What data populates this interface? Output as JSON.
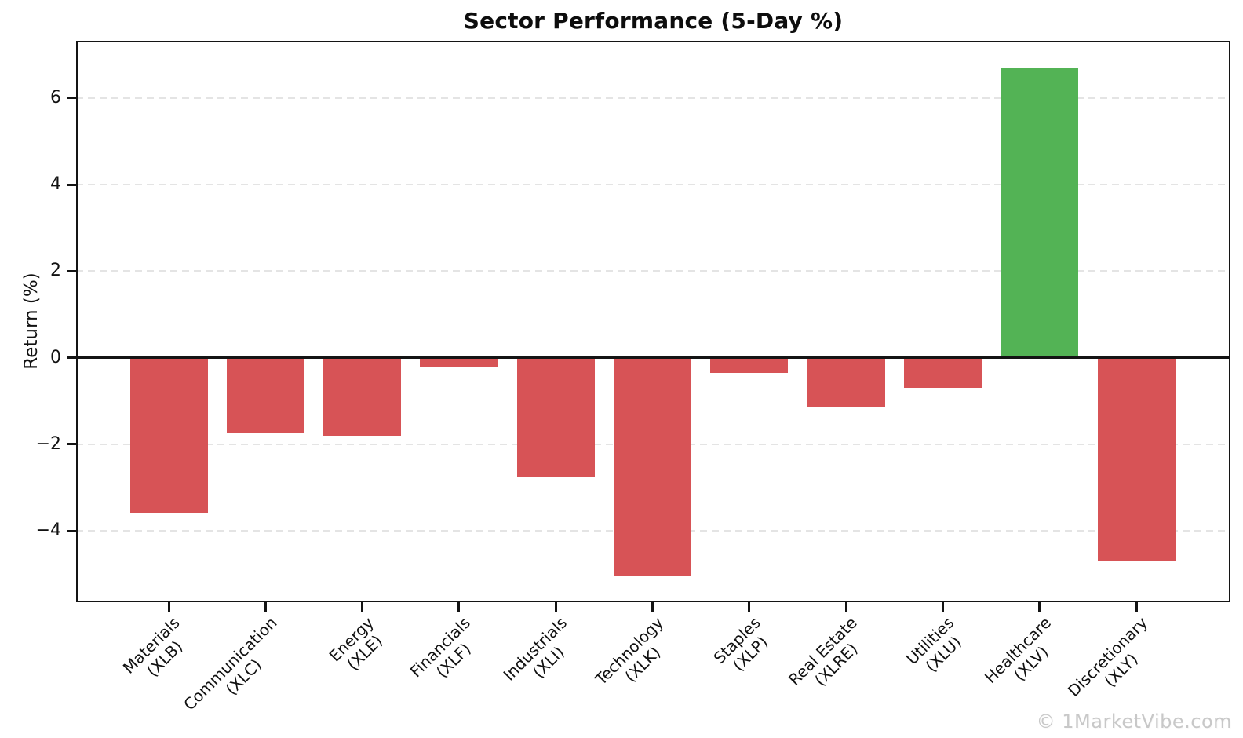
{
  "watermark": "© 1MarketVibe.com",
  "chart_data": {
    "type": "bar",
    "title": "Sector Performance (5-Day %)",
    "xlabel": "",
    "ylabel": "Return (%)",
    "categories": [
      [
        "Materials",
        "(XLB)"
      ],
      [
        "Communication",
        "(XLC)"
      ],
      [
        "Energy",
        "(XLE)"
      ],
      [
        "Financials",
        "(XLF)"
      ],
      [
        "Industrials",
        "(XLI)"
      ],
      [
        "Technology",
        "(XLK)"
      ],
      [
        "Staples",
        "(XLP)"
      ],
      [
        "Real Estate",
        "(XLRE)"
      ],
      [
        "Utilities",
        "(XLU)"
      ],
      [
        "Healthcare",
        "(XLV)"
      ],
      [
        "Discretionary",
        "(XLY)"
      ]
    ],
    "values": [
      -3.6,
      -1.75,
      -1.8,
      -0.2,
      -2.75,
      -5.05,
      -0.35,
      -1.15,
      -0.7,
      6.7,
      -4.7
    ],
    "ylim": [
      -5.65,
      7.32
    ],
    "yticks": [
      -4,
      -2,
      0,
      2,
      4,
      6
    ],
    "grid": true,
    "zero_line": true,
    "legend": "none",
    "colors": {
      "positive": "#53b355",
      "negative": "#d75356",
      "grid": "#e4e4e4",
      "axis": "#141414",
      "watermark": "#c8c8c8"
    }
  }
}
